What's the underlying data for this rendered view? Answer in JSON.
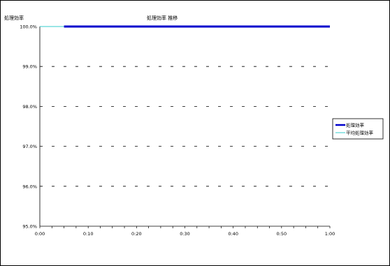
{
  "chart_data": {
    "type": "line",
    "title": "処理効率 推移",
    "ylabel": "処理効率",
    "xlabel": "",
    "x_ticks": [
      "0:00",
      "0:10",
      "0:20",
      "0:30",
      "0:40",
      "0:50",
      "1:00"
    ],
    "y_ticks": [
      "95.0%",
      "96.0%",
      "97.0%",
      "98.0%",
      "99.0%",
      "100.0%"
    ],
    "xlim": [
      0,
      60
    ],
    "ylim": [
      95.0,
      100.0
    ],
    "grid": "horizontal-dashed",
    "legend_position": "right",
    "series": [
      {
        "name": "処理効率",
        "color": "#0000cc",
        "x": [
          5,
          60
        ],
        "y": [
          100.0,
          100.0
        ]
      },
      {
        "name": "平均処理効率",
        "color": "#33cccc",
        "x": [
          0,
          60
        ],
        "y": [
          100.0,
          100.0
        ]
      }
    ]
  }
}
